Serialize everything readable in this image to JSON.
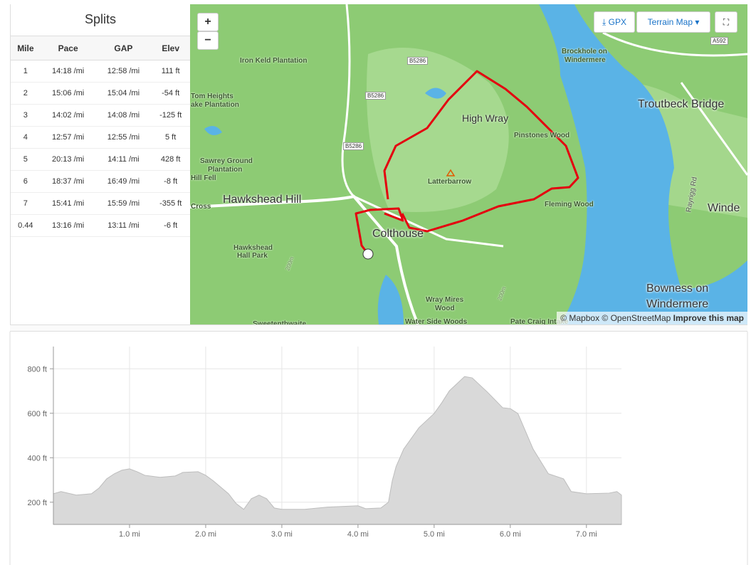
{
  "splits": {
    "title": "Splits",
    "columns": [
      "Mile",
      "Pace",
      "GAP",
      "Elev"
    ],
    "rows": [
      [
        "1",
        "14:18 /mi",
        "12:58 /mi",
        "111 ft"
      ],
      [
        "2",
        "15:06 /mi",
        "15:04 /mi",
        "-54 ft"
      ],
      [
        "3",
        "14:02 /mi",
        "14:08 /mi",
        "-125 ft"
      ],
      [
        "4",
        "12:57 /mi",
        "12:55 /mi",
        "5 ft"
      ],
      [
        "5",
        "20:13 /mi",
        "14:11 /mi",
        "428 ft"
      ],
      [
        "6",
        "18:37 /mi",
        "16:49 /mi",
        "-8 ft"
      ],
      [
        "7",
        "15:41 /mi",
        "15:59 /mi",
        "-355 ft"
      ],
      [
        "0.44",
        "13:16 /mi",
        "13:11 /mi",
        "-6 ft"
      ]
    ]
  },
  "map": {
    "zoom_in": "+",
    "zoom_out": "−",
    "gpx": "GPX",
    "layer": "Terrain Map",
    "attribution": "© Mapbox © OpenStreetMap",
    "improve": "Improve this map",
    "labels": [
      "Iron Keld Plantation",
      "B5286",
      "B5286",
      "B5286",
      "Brockhole on",
      "Windermere",
      "A592",
      "Troutbeck Bridge",
      "High Wray",
      "Pinstones Wood",
      "Tom Heights",
      "ake Plantation",
      "Latterbarrow",
      "Sawrey Ground",
      "Plantation",
      "Hill Fell",
      "Hawkshead Hill",
      "Cross",
      "Fleming Wood",
      "Colthouse",
      "Hawkshead",
      "Hall Park",
      "Winde",
      "Bowness on",
      "Windermere",
      "Wray Mires",
      "Wood",
      "Water Side Woods",
      "Pate Craig Intake",
      "Sweetenthwaite",
      "Rayrigg Rd",
      "200m",
      "200m"
    ]
  },
  "chart_data": {
    "type": "area",
    "color": "#d9d9d9",
    "x": [
      0,
      0.1,
      0.3,
      0.5,
      0.6,
      0.7,
      0.8,
      0.9,
      1.0,
      1.1,
      1.2,
      1.4,
      1.6,
      1.7,
      1.9,
      2.0,
      2.1,
      2.3,
      2.4,
      2.5,
      2.6,
      2.7,
      2.8,
      2.9,
      3.0,
      3.3,
      3.6,
      4.0,
      4.1,
      4.3,
      4.4,
      4.45,
      4.5,
      4.6,
      4.8,
      4.9,
      5.0,
      5.1,
      5.2,
      5.4,
      5.5,
      5.7,
      5.9,
      6.0,
      6.1,
      6.3,
      6.5,
      6.7,
      6.8,
      7.0,
      7.3,
      7.4,
      7.46
    ],
    "values": [
      238,
      248,
      232,
      238,
      264,
      305,
      328,
      344,
      350,
      337,
      321,
      312,
      318,
      334,
      337,
      321,
      296,
      238,
      194,
      168,
      216,
      232,
      216,
      174,
      168,
      168,
      178,
      184,
      171,
      174,
      200,
      296,
      360,
      439,
      535,
      567,
      599,
      647,
      701,
      765,
      759,
      695,
      625,
      621,
      599,
      439,
      328,
      305,
      248,
      238,
      241,
      248,
      232
    ],
    "xlim": [
      0,
      7.46
    ],
    "ylim": [
      100,
      900
    ],
    "xticks": [
      {
        "value": 1,
        "label": "1.0 mi"
      },
      {
        "value": 2,
        "label": "2.0 mi"
      },
      {
        "value": 3,
        "label": "3.0 mi"
      },
      {
        "value": 4,
        "label": "4.0 mi"
      },
      {
        "value": 5,
        "label": "5.0 mi"
      },
      {
        "value": 6,
        "label": "6.0 mi"
      },
      {
        "value": 7,
        "label": "7.0 mi"
      }
    ],
    "yticks": [
      {
        "value": 200,
        "label": "200 ft"
      },
      {
        "value": 400,
        "label": "400 ft"
      },
      {
        "value": 600,
        "label": "600 ft"
      },
      {
        "value": 800,
        "label": "800 ft"
      }
    ],
    "grid": true
  }
}
